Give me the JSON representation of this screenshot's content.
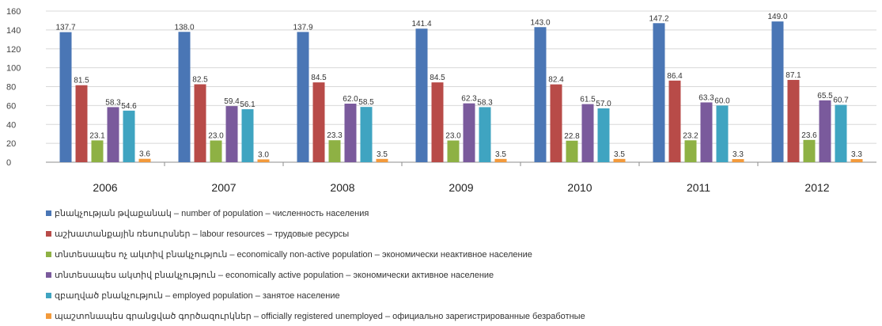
{
  "chart_data": {
    "type": "bar",
    "categories": [
      "2006",
      "2007",
      "2008",
      "2009",
      "2010",
      "2011",
      "2012"
    ],
    "ylim": [
      0,
      160
    ],
    "yticks": [
      "0",
      "20",
      "40",
      "60",
      "80",
      "100",
      "120",
      "140",
      "160"
    ],
    "grid": true,
    "legend_position": "bottom",
    "series": [
      {
        "name": "բնակչության թվաքանակ – number of population – численность населения",
        "color": "#4a76b5",
        "values": [
          137.7,
          138.0,
          137.9,
          141.4,
          143.0,
          147.2,
          149.0
        ],
        "labels": [
          "137.7",
          "138.0",
          "137.9",
          "141.4",
          "143.0",
          "147.2",
          "149.0"
        ]
      },
      {
        "name": "աշխատանքային ռեսուրսներ – labour resources – трудовые ресурсы",
        "color": "#b84b48",
        "values": [
          81.5,
          82.5,
          84.5,
          84.5,
          82.4,
          86.4,
          87.1
        ],
        "labels": [
          "81.5",
          "82.5",
          "84.5",
          "84.5",
          "82.4",
          "86.4",
          "87.1"
        ]
      },
      {
        "name": "տնտեսապես ոչ ակտիվ բնակչություն – economically non-active population – экономически неактивное население",
        "color": "#8eb144",
        "values": [
          23.1,
          23.0,
          23.3,
          23.0,
          22.8,
          23.2,
          23.6
        ],
        "labels": [
          "23.1",
          "23.0",
          "23.3",
          "23.0",
          "22.8",
          "23.2",
          "23.6"
        ]
      },
      {
        "name": "տնտեսապես ակտիվ բնակչություն – economically active population – экономически активное население",
        "color": "#7a5a9c",
        "values": [
          58.3,
          59.4,
          62.0,
          62.3,
          61.5,
          63.3,
          65.5
        ],
        "labels": [
          "58.3",
          "59.4",
          "62.0",
          "62.3",
          "61.5",
          "63.3",
          "65.5"
        ]
      },
      {
        "name": "զբաղված բնակչություն – employed population – занятое население",
        "color": "#3fa4c1",
        "values": [
          54.6,
          56.1,
          58.5,
          58.3,
          57.0,
          60.0,
          60.7
        ],
        "labels": [
          "54.6",
          "56.1",
          "58.5",
          "58.3",
          "57.0",
          "60.0",
          "60.7"
        ]
      },
      {
        "name": "պաշտոնապես գրանցված գործազուրկներ – officially registered unemployed – официально зарегистрированные безработные",
        "color": "#f39a3b",
        "values": [
          3.6,
          3.0,
          3.5,
          3.5,
          3.5,
          3.3,
          3.3
        ],
        "labels": [
          "3.6",
          "3.0",
          "3.5",
          "3.5",
          "3.5",
          "3.3",
          "3.3"
        ]
      }
    ]
  }
}
